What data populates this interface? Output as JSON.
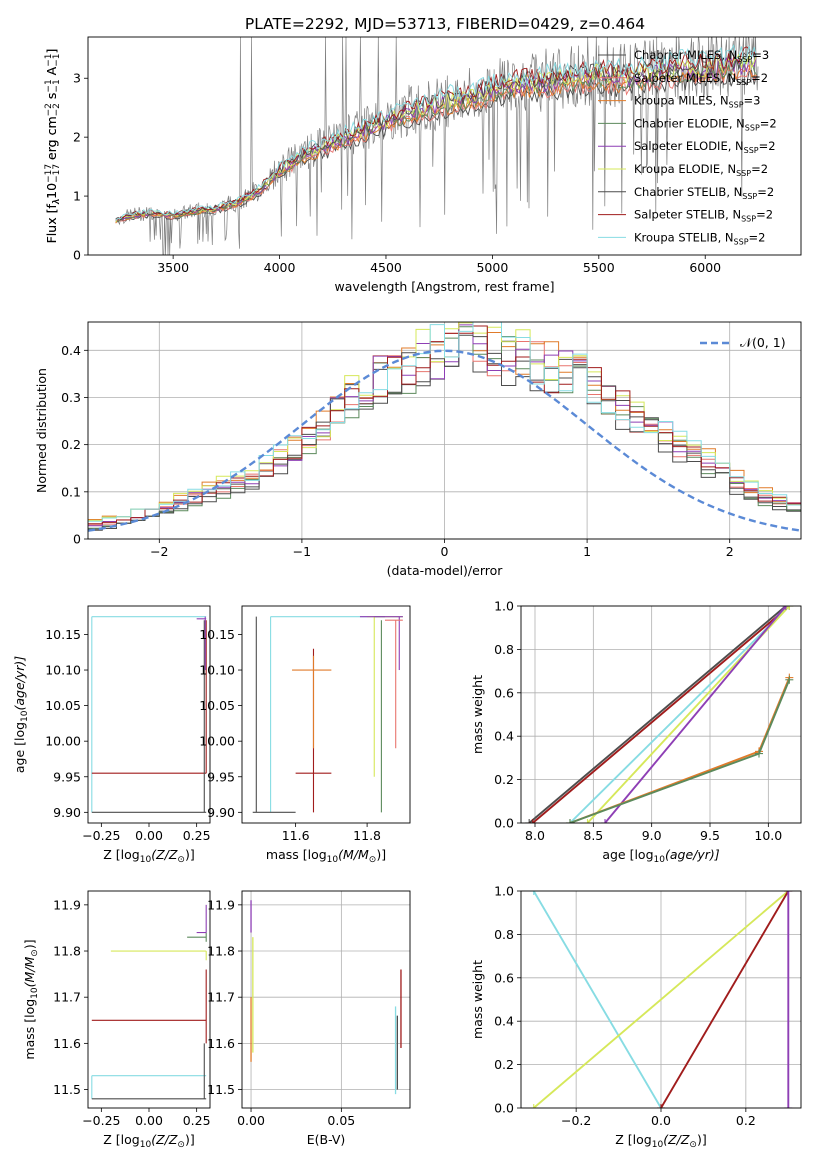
{
  "title": "PLATE=2292, MJD=53713, FIBERID=0429, z=0.464",
  "colors": {
    "Chabrier MILES": "#4d4d4d",
    "Salpeter MILES": "#e8756f",
    "Kroupa MILES": "#e07b2a",
    "Chabrier ELODIE": "#5c8a5c",
    "Salpeter ELODIE": "#8e3fb5",
    "Kroupa ELODIE": "#d6e85a",
    "Chabrier STELIB": "#4d4d4d",
    "Salpeter STELIB": "#a01c1c",
    "Kroupa STELIB": "#87dce3",
    "data": "#7f7f7f",
    "normal": "#5b8ad6"
  },
  "chart_data": [
    {
      "id": "spectrum",
      "type": "line",
      "xlabel": "wavelength [Angstrom, rest frame]",
      "ylabel_parts": [
        "Flux [f",
        "λ",
        "10",
        "−17",
        " erg cm",
        "−2",
        " s",
        "−1",
        " A",
        "−1",
        "]"
      ],
      "xlim": [
        3100,
        6450
      ],
      "ylim": [
        0,
        3.7
      ],
      "xticks": [
        3500,
        4000,
        4500,
        5000,
        5500,
        6000
      ],
      "yticks": [
        0,
        1,
        2,
        3
      ],
      "legend_position": "top-right",
      "series": [
        {
          "name": "Chabrier MILES",
          "ssp": "3"
        },
        {
          "name": "Salpeter MILES",
          "ssp": "2"
        },
        {
          "name": "Kroupa MILES",
          "ssp": "3"
        },
        {
          "name": "Chabrier ELODIE",
          "ssp": "2"
        },
        {
          "name": "Salpeter ELODIE",
          "ssp": "2"
        },
        {
          "name": "Kroupa ELODIE",
          "ssp": "2"
        },
        {
          "name": "Chabrier STELIB",
          "ssp": "2"
        },
        {
          "name": "Salpeter STELIB",
          "ssp": "2"
        },
        {
          "name": "Kroupa STELIB",
          "ssp": "2"
        }
      ],
      "continuum": {
        "x": [
          3200,
          3250,
          3300,
          3400,
          3500,
          3600,
          3700,
          3800,
          3900,
          4000,
          4100,
          4200,
          4300,
          4400,
          4500,
          4600,
          4700,
          4800,
          4900,
          5000,
          5100,
          5200,
          5300,
          5400,
          5500,
          5600,
          5700,
          5800,
          5900,
          6000,
          6100,
          6200
        ],
        "y": [
          0.55,
          0.62,
          0.68,
          0.72,
          0.68,
          0.75,
          0.8,
          0.9,
          1.1,
          1.45,
          1.7,
          1.85,
          2.0,
          2.15,
          2.3,
          2.45,
          2.55,
          2.65,
          2.7,
          2.85,
          2.95,
          2.95,
          3.0,
          3.05,
          3.1,
          3.05,
          3.1,
          3.15,
          3.2,
          3.2,
          3.25,
          3.3
        ]
      }
    },
    {
      "id": "residuals",
      "type": "histogram",
      "xlabel": "(data-model)/error",
      "ylabel": "Normed distribution",
      "xlim": [
        -2.5,
        2.5
      ],
      "ylim": [
        0,
        0.46
      ],
      "xticks": [
        -2,
        -1,
        0,
        1,
        2
      ],
      "yticks": [
        0.0,
        0.1,
        0.2,
        0.3,
        0.4
      ],
      "grid": true,
      "legend_position": "top-right",
      "reference_curve": "𝒩(0, 1)",
      "bins": [
        -2.5,
        -2.4,
        -2.3,
        -2.2,
        -2.1,
        -2.0,
        -1.9,
        -1.8,
        -1.7,
        -1.6,
        -1.5,
        -1.4,
        -1.3,
        -1.2,
        -1.1,
        -1.0,
        -0.9,
        -0.8,
        -0.7,
        -0.6,
        -0.5,
        -0.4,
        -0.3,
        -0.2,
        -0.1,
        0.0,
        0.1,
        0.2,
        0.3,
        0.4,
        0.5,
        0.6,
        0.7,
        0.8,
        0.9,
        1.0,
        1.1,
        1.2,
        1.3,
        1.4,
        1.5,
        1.6,
        1.7,
        1.8,
        1.9,
        2.0,
        2.1,
        2.2,
        2.3,
        2.4,
        2.5
      ],
      "envelope": [
        0.02,
        0.025,
        0.03,
        0.04,
        0.05,
        0.06,
        0.07,
        0.08,
        0.09,
        0.1,
        0.11,
        0.12,
        0.14,
        0.16,
        0.18,
        0.2,
        0.23,
        0.26,
        0.29,
        0.31,
        0.33,
        0.34,
        0.35,
        0.37,
        0.38,
        0.4,
        0.41,
        0.4,
        0.39,
        0.38,
        0.37,
        0.36,
        0.35,
        0.34,
        0.33,
        0.31,
        0.29,
        0.27,
        0.25,
        0.23,
        0.21,
        0.19,
        0.17,
        0.15,
        0.13,
        0.11,
        0.09,
        0.08,
        0.07,
        0.06
      ]
    },
    {
      "id": "age-vs-Z",
      "type": "scatter",
      "xlabel_parts": [
        "Z [log",
        "10",
        "(Z/Z",
        "⊙",
        ")]"
      ],
      "ylabel_parts": [
        "age  [log",
        "10",
        "(age/yr)]"
      ],
      "xlim": [
        -0.32,
        0.32
      ],
      "ylim": [
        9.885,
        10.19
      ],
      "xticks": [
        -0.25,
        0.0,
        0.25
      ],
      "xticklabels": [
        "−0.25",
        "0.00",
        "0.25"
      ],
      "yticks": [
        9.9,
        9.95,
        10.0,
        10.05,
        10.1,
        10.15
      ],
      "yticklabels": [
        "9.90",
        "9.95",
        "10.00",
        "10.05",
        "10.10",
        "10.15"
      ],
      "segments": [
        {
          "color": "Kroupa STELIB",
          "x1": -0.3,
          "x2": 0.3,
          "y": 10.175,
          "yerr_low": 9.9,
          "yerr_high": 10.175,
          "x_at": -0.3
        },
        {
          "color": "Salpeter STELIB",
          "x1": -0.3,
          "x2": 0.3,
          "y": 9.955,
          "yerr_low": 9.955,
          "yerr_high": 10.17,
          "x_at": 0.3
        },
        {
          "color": "Chabrier STELIB",
          "x1": -0.3,
          "x2": 0.3,
          "y": 9.9,
          "yerr_low": 9.9,
          "yerr_high": 10.17,
          "x_at": 0.29
        },
        {
          "color": "Salpeter ELODIE",
          "x1": 0.25,
          "x2": 0.3,
          "y": 10.172,
          "yerr_low": 10.1,
          "yerr_high": 10.175,
          "x_at": 0.295
        }
      ]
    },
    {
      "id": "age-vs-mass",
      "type": "scatter",
      "xlabel_parts": [
        "mass [log",
        "10",
        "(M/M",
        "⊙",
        ")]"
      ],
      "xlim": [
        11.45,
        11.92
      ],
      "ylim": [
        9.885,
        10.19
      ],
      "xticks": [
        11.6,
        11.8
      ],
      "xticklabels": [
        "11.6",
        "11.8"
      ],
      "yticks": [
        9.9,
        9.95,
        10.0,
        10.05,
        10.1,
        10.15
      ],
      "yticklabels": [
        "9.90",
        "9.95",
        "10.00",
        "10.05",
        "10.10",
        "10.15"
      ],
      "segments": [
        {
          "color": "Kroupa STELIB",
          "x1": 11.53,
          "x2": 11.9,
          "y": 10.175,
          "yerr_low": 9.9,
          "yerr_high": 10.175,
          "x_at": 11.53
        },
        {
          "color": "Chabrier STELIB",
          "x1": 11.48,
          "x2": 11.6,
          "y": 9.9,
          "yerr_low": 9.9,
          "yerr_high": 10.175,
          "x_at": 11.49
        },
        {
          "color": "Salpeter STELIB",
          "x1": 11.6,
          "x2": 11.7,
          "y": 9.955,
          "yerr_low": 9.9,
          "yerr_high": 10.13,
          "x_at": 11.65
        },
        {
          "color": "Kroupa MILES",
          "x1": 11.59,
          "x2": 11.7,
          "y": 10.1,
          "yerr_low": 9.99,
          "yerr_high": 10.12,
          "x_at": 11.65
        },
        {
          "color": "Kroupa ELODIE",
          "x1": 11.8,
          "x2": 11.9,
          "y": 10.175,
          "yerr_low": 9.95,
          "yerr_high": 10.175,
          "x_at": 11.82
        },
        {
          "color": "Chabrier ELODIE",
          "x1": 11.82,
          "x2": 11.85,
          "y": 10.175,
          "yerr_low": 9.9,
          "yerr_high": 10.17,
          "x_at": 11.84
        },
        {
          "color": "Salpeter ELODIE",
          "x1": 11.78,
          "x2": 11.9,
          "y": 10.175,
          "yerr_low": 10.1,
          "yerr_high": 10.175,
          "x_at": 11.89
        },
        {
          "color": "Salpeter MILES",
          "x1": 11.85,
          "x2": 11.9,
          "y": 10.17,
          "yerr_low": 9.99,
          "yerr_high": 10.17,
          "x_at": 11.88
        }
      ]
    },
    {
      "id": "weight-vs-age",
      "type": "line",
      "xlabel_parts": [
        "age  [log",
        "10",
        "(age/yr)]"
      ],
      "ylabel": "mass weight",
      "xlim": [
        7.88,
        10.28
      ],
      "ylim": [
        0,
        1.0
      ],
      "xticks": [
        8.0,
        8.5,
        9.0,
        9.5,
        10.0
      ],
      "xticklabels": [
        "8.0",
        "8.5",
        "9.0",
        "9.5",
        "10.0"
      ],
      "yticks": [
        0.0,
        0.2,
        0.4,
        0.6,
        0.8,
        1.0
      ],
      "yticklabels": [
        "0.0",
        "0.2",
        "0.4",
        "0.6",
        "0.8",
        "1.0"
      ],
      "grid": true,
      "series": [
        {
          "color": "Chabrier STELIB",
          "x": [
            7.95,
            10.15
          ],
          "y": [
            0.0,
            1.0
          ]
        },
        {
          "color": "Salpeter STELIB",
          "x": [
            7.98,
            10.18
          ],
          "y": [
            0.0,
            1.0
          ]
        },
        {
          "color": "Kroupa STELIB",
          "x": [
            8.3,
            10.18
          ],
          "y": [
            0.0,
            1.0
          ]
        },
        {
          "color": "Kroupa ELODIE",
          "x": [
            8.45,
            10.18
          ],
          "y": [
            0.0,
            1.0
          ]
        },
        {
          "color": "Salpeter ELODIE",
          "x": [
            8.6,
            10.15
          ],
          "y": [
            0.0,
            1.0
          ]
        },
        {
          "color": "Kroupa MILES",
          "x": [
            8.3,
            9.92,
            10.18
          ],
          "y": [
            0.0,
            0.33,
            0.67
          ]
        },
        {
          "color": "Chabrier ELODIE",
          "x": [
            8.3,
            9.92,
            10.18
          ],
          "y": [
            0.0,
            0.32,
            0.66
          ]
        }
      ]
    },
    {
      "id": "mass-vs-Z",
      "type": "scatter",
      "xlabel_parts": [
        "Z [log",
        "10",
        "(Z/Z",
        "⊙",
        ")]"
      ],
      "ylabel_parts": [
        "mass [log",
        "10",
        "(M/M",
        "⊙",
        ")]"
      ],
      "xlim": [
        -0.32,
        0.32
      ],
      "ylim": [
        11.46,
        11.93
      ],
      "xticks": [
        -0.25,
        0.0,
        0.25
      ],
      "xticklabels": [
        "−0.25",
        "0.00",
        "0.25"
      ],
      "yticks": [
        11.5,
        11.6,
        11.7,
        11.8,
        11.9
      ],
      "yticklabels": [
        "11.5",
        "11.6",
        "11.7",
        "11.8",
        "11.9"
      ],
      "segments": [
        {
          "color": "Kroupa ELODIE",
          "x1": -0.2,
          "x2": 0.3,
          "y": 11.8,
          "yerr_low": 11.78,
          "yerr_high": 11.8,
          "x_at": 0.3
        },
        {
          "color": "Chabrier ELODIE",
          "x1": 0.2,
          "x2": 0.3,
          "y": 11.83,
          "yerr_low": 11.82,
          "yerr_high": 11.84,
          "x_at": 0.3
        },
        {
          "color": "Salpeter ELODIE",
          "x1": 0.25,
          "x2": 0.3,
          "y": 11.84,
          "yerr_low": 11.84,
          "yerr_high": 11.9,
          "x_at": 0.3
        },
        {
          "color": "Salpeter STELIB",
          "x1": -0.3,
          "x2": 0.3,
          "y": 11.65,
          "yerr_low": 11.6,
          "yerr_high": 11.76,
          "x_at": 0.3
        },
        {
          "color": "Kroupa STELIB",
          "x1": -0.3,
          "x2": 0.3,
          "y": 11.53,
          "yerr_low": 11.48,
          "yerr_high": 11.53,
          "x_at": -0.3
        },
        {
          "color": "Chabrier STELIB",
          "x1": -0.3,
          "x2": 0.3,
          "y": 11.48,
          "yerr_low": 11.48,
          "yerr_high": 11.6,
          "x_at": 0.29
        }
      ]
    },
    {
      "id": "mass-vs-EBV",
      "type": "scatter",
      "xlabel": "E(B-V)",
      "xlim": [
        -0.005,
        0.088
      ],
      "ylim": [
        11.46,
        11.93
      ],
      "xticks": [
        0.0,
        0.05
      ],
      "xticklabels": [
        "0.00",
        "0.05"
      ],
      "yticks": [
        11.5,
        11.6,
        11.7,
        11.8,
        11.9
      ],
      "yticklabels": [
        "11.5",
        "11.6",
        "11.7",
        "11.8",
        "11.9"
      ],
      "grid": true,
      "points": [
        {
          "color": "Salpeter ELODIE",
          "x": 0.0,
          "ylow": 11.84,
          "yhigh": 11.91
        },
        {
          "color": "Kroupa ELODIE",
          "x": 0.001,
          "ylow": 11.58,
          "yhigh": 11.83
        },
        {
          "color": "Kroupa MILES",
          "x": 0.0,
          "ylow": 11.56,
          "yhigh": 11.7
        },
        {
          "color": "Kroupa STELIB",
          "x": 0.08,
          "ylow": 11.49,
          "yhigh": 11.68
        },
        {
          "color": "Chabrier STELIB",
          "x": 0.081,
          "ylow": 11.5,
          "yhigh": 11.66
        },
        {
          "color": "Salpeter STELIB",
          "x": 0.083,
          "ylow": 11.59,
          "yhigh": 11.76
        }
      ]
    },
    {
      "id": "weight-vs-Z",
      "type": "line",
      "xlabel_parts": [
        "Z [log",
        "10",
        "(Z/Z",
        "⊙",
        ")]"
      ],
      "ylabel": "mass weight",
      "xlim": [
        -0.33,
        0.33
      ],
      "ylim": [
        0,
        1.0
      ],
      "xticks": [
        -0.2,
        0.0,
        0.2
      ],
      "xticklabels": [
        "−0.2",
        "0.0",
        "0.2"
      ],
      "yticks": [
        0.0,
        0.2,
        0.4,
        0.6,
        0.8,
        1.0
      ],
      "yticklabels": [
        "0.0",
        "0.2",
        "0.4",
        "0.6",
        "0.8",
        "1.0"
      ],
      "grid": true,
      "series": [
        {
          "color": "Kroupa STELIB",
          "x": [
            -0.3,
            0.0
          ],
          "y": [
            1.0,
            0.0
          ]
        },
        {
          "color": "Kroupa ELODIE",
          "x": [
            -0.3,
            0.3
          ],
          "y": [
            0.0,
            1.0
          ]
        },
        {
          "color": "Salpeter STELIB",
          "x": [
            0.0,
            0.3
          ],
          "y": [
            0.0,
            1.0
          ]
        },
        {
          "color": "Salpeter ELODIE",
          "x": [
            0.3,
            0.3
          ],
          "y": [
            0.0,
            1.0
          ]
        }
      ]
    }
  ]
}
